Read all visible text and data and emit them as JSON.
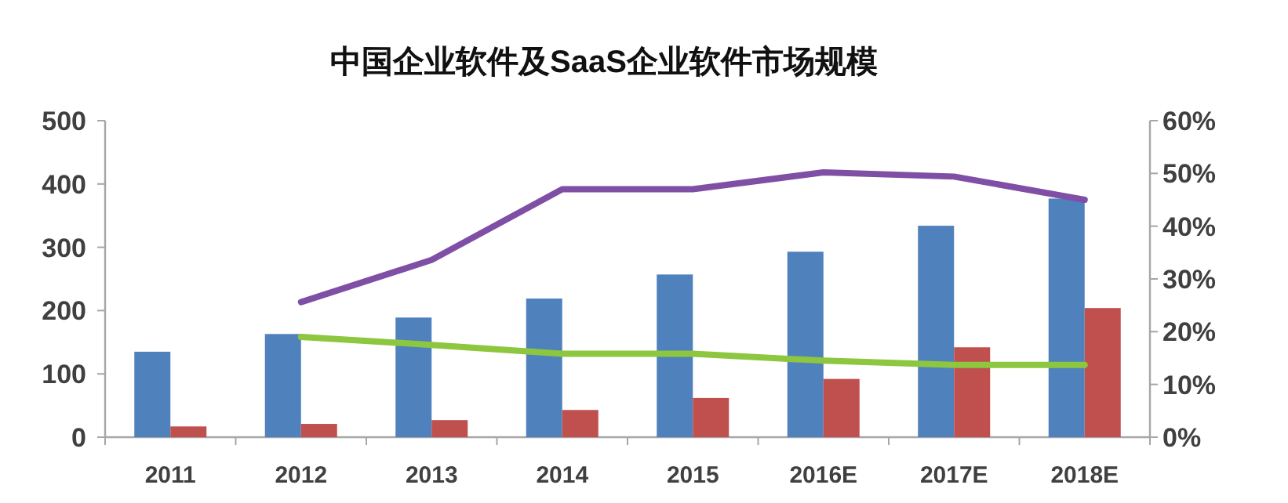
{
  "chart_data": {
    "type": "bar",
    "title": "中国企业软件及SaaS企业软件市场规模",
    "categories": [
      "2011",
      "2012",
      "2013",
      "2014",
      "2015",
      "2016E",
      "2017E",
      "2018E"
    ],
    "series": [
      {
        "color": "#4f81bd",
        "values": [
          135,
          163,
          189,
          219,
          257,
          293,
          334,
          377
        ]
      },
      {
        "color": "#c0504d",
        "values": [
          17,
          21,
          27,
          43,
          62,
          92,
          142,
          204
        ]
      },
      {
        "type": "line",
        "axis": "y2",
        "color": "#7f4fa6",
        "values": [
          null,
          25.6,
          33.6,
          47,
          47,
          50.2,
          49.4,
          45
        ]
      },
      {
        "type": "line",
        "axis": "y2",
        "color": "#8dc63f",
        "values": [
          null,
          19,
          17.5,
          15.8,
          15.8,
          14.5,
          13.7,
          13.7
        ]
      }
    ],
    "ylim": [
      0,
      500
    ],
    "yticks": [
      0,
      100,
      200,
      300,
      400,
      500
    ],
    "y2lim": [
      0,
      60
    ],
    "y2ticks": [
      {
        "value": 0,
        "label": "0%"
      },
      {
        "value": 10,
        "label": "10%"
      },
      {
        "value": 20,
        "label": "20%"
      },
      {
        "value": 30,
        "label": "30%"
      },
      {
        "value": 40,
        "label": "40%"
      },
      {
        "value": 50,
        "label": "50%"
      },
      {
        "value": 60,
        "label": "60%"
      }
    ],
    "grid": false,
    "marker": "none",
    "line_style": "solid"
  }
}
